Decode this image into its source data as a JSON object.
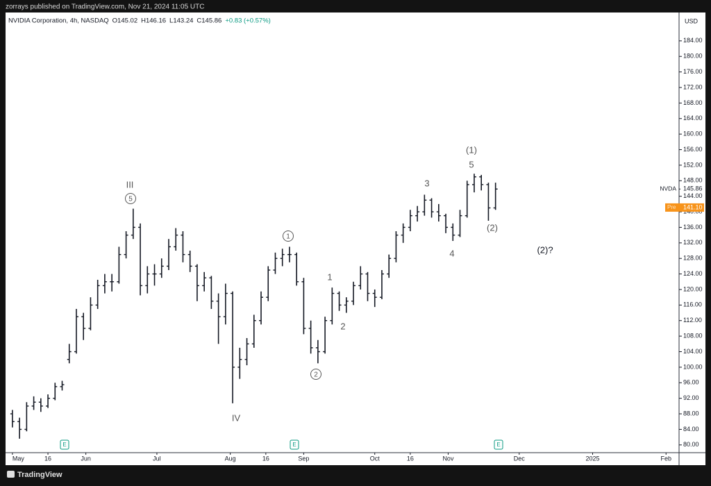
{
  "publisher": "zorrays published on TradingView.com, Nov 21, 2024 11:05 UTC",
  "footer": "TradingView",
  "chart_data": {
    "type": "ohlc",
    "legend": [
      "NVIDIA Corporation, 4h, NASDAQ",
      "O145.02",
      "H146.16",
      "L143.24",
      "C145.86",
      "+0.83 (+0.57%)"
    ],
    "currency": "USD",
    "color": "#131722",
    "x": [
      0,
      3,
      6,
      9,
      12,
      15,
      18,
      21,
      24,
      27,
      30,
      33,
      36,
      39,
      42,
      45,
      48,
      51,
      54,
      57,
      60,
      63,
      66,
      69,
      72,
      75,
      78,
      81,
      84,
      87,
      90,
      93,
      96,
      99,
      102,
      105,
      108,
      111,
      114,
      117,
      120,
      123,
      126,
      129,
      132,
      135,
      138,
      141,
      144,
      147,
      150,
      153,
      156,
      159,
      162,
      165,
      168,
      171,
      174,
      177,
      180,
      183,
      186,
      189,
      192,
      195,
      198,
      201,
      204
    ],
    "open": [
      88,
      86,
      84,
      90,
      91,
      90,
      92,
      95,
      102,
      104,
      113,
      110,
      116,
      121,
      122,
      122,
      129,
      134,
      136,
      121,
      124,
      124,
      126,
      131,
      134,
      129,
      126,
      121,
      123,
      117,
      113,
      119,
      100,
      102,
      106,
      112,
      118,
      125,
      128,
      129,
      129,
      122,
      110,
      105,
      104,
      112,
      119,
      116,
      117,
      121,
      124,
      119,
      118,
      124,
      128,
      134,
      136,
      139,
      140,
      143,
      140,
      139,
      136,
      134,
      139,
      147,
      149,
      147,
      141
    ],
    "high": [
      89,
      87,
      91,
      92.5,
      92,
      93,
      96,
      96.5,
      106,
      115,
      114,
      118,
      122.5,
      124,
      124,
      131,
      135,
      140.8,
      137,
      126,
      126.5,
      128,
      133,
      135.8,
      135,
      130,
      126.5,
      124.5,
      123.5,
      119,
      121.5,
      119.5,
      105,
      107.5,
      113.5,
      119.5,
      126,
      129.5,
      130.5,
      131,
      129.5,
      123,
      112,
      107,
      113,
      120.5,
      119.5,
      118,
      122,
      126,
      124.5,
      120,
      125,
      129,
      135,
      137,
      140.5,
      141.5,
      144.4,
      143.5,
      142,
      139.5,
      137,
      140.5,
      148,
      149.8,
      149.5,
      147.5,
      147.5
    ],
    "low": [
      84.5,
      81.6,
      83.5,
      89,
      88.5,
      89.5,
      91.5,
      94,
      101,
      103.5,
      107,
      109.5,
      115,
      119,
      119.5,
      121.5,
      128,
      133,
      118.5,
      119,
      121,
      123,
      125,
      130,
      127,
      124.5,
      117,
      119.5,
      115,
      106,
      111,
      90.7,
      97,
      100.5,
      105,
      111,
      117,
      124,
      126,
      127,
      121,
      108.5,
      103.5,
      101,
      103.5,
      111,
      114.5,
      114,
      116,
      120,
      117,
      115.5,
      117.5,
      123,
      127,
      132,
      135,
      137.5,
      139,
      138.5,
      137.5,
      134.5,
      132.5,
      133.5,
      138.5,
      145,
      145.5,
      137.7,
      140.5
    ],
    "close": [
      86,
      84,
      90,
      91,
      90,
      92,
      95,
      95.5,
      104,
      113,
      110,
      116,
      121,
      122,
      122,
      129,
      134,
      136,
      121,
      124,
      124,
      126,
      131,
      134,
      129,
      126,
      121,
      123,
      117,
      113,
      119,
      100,
      102,
      106,
      112,
      118,
      125,
      128,
      129,
      129,
      122,
      110,
      105,
      104,
      112,
      119,
      116,
      117,
      121,
      124,
      119,
      118,
      124,
      128,
      134,
      136,
      139,
      140,
      143,
      140,
      139,
      136,
      134,
      139,
      147,
      149,
      147,
      141,
      145.86
    ],
    "xlim": [
      -2.9,
      281.5
    ],
    "xticks": [
      {
        "value": 0,
        "label": "May"
      },
      {
        "value": 15,
        "label": "16"
      },
      {
        "value": 31,
        "label": "Jun"
      },
      {
        "value": 61,
        "label": "Jul"
      },
      {
        "value": 92,
        "label": "Aug"
      },
      {
        "value": 107,
        "label": "16"
      },
      {
        "value": 123,
        "label": "Sep"
      },
      {
        "value": 153,
        "label": "Oct"
      },
      {
        "value": 168,
        "label": "16"
      },
      {
        "value": 184,
        "label": "Nov"
      },
      {
        "value": 214,
        "label": "Dec"
      },
      {
        "value": 245,
        "label": "2025"
      },
      {
        "value": 276,
        "label": "Feb"
      }
    ],
    "ylim": [
      78.0,
      191.3
    ],
    "yticks": [
      {
        "value": 80,
        "label": "80.00"
      },
      {
        "value": 84,
        "label": "84.00"
      },
      {
        "value": 88,
        "label": "88.00"
      },
      {
        "value": 92,
        "label": "92.00"
      },
      {
        "value": 96,
        "label": "96.00"
      },
      {
        "value": 100,
        "label": "100.00"
      },
      {
        "value": 104,
        "label": "104.00"
      },
      {
        "value": 108,
        "label": "108.00"
      },
      {
        "value": 112,
        "label": "112.00"
      },
      {
        "value": 116,
        "label": "116.00"
      },
      {
        "value": 120,
        "label": "120.00"
      },
      {
        "value": 124,
        "label": "124.00"
      },
      {
        "value": 128,
        "label": "128.00"
      },
      {
        "value": 132,
        "label": "132.00"
      },
      {
        "value": 136,
        "label": "136.00"
      },
      {
        "value": 140,
        "label": "140.00"
      },
      {
        "value": 144,
        "label": "144.00"
      },
      {
        "value": 148,
        "label": "148.00"
      },
      {
        "value": 152,
        "label": "152.00"
      },
      {
        "value": 156,
        "label": "156.00"
      },
      {
        "value": 160,
        "label": "160.00"
      },
      {
        "value": 164,
        "label": "164.00"
      },
      {
        "value": 168,
        "label": "168.00"
      },
      {
        "value": 172,
        "label": "172.00"
      },
      {
        "value": 176,
        "label": "176.00"
      },
      {
        "value": 180,
        "label": "180.00"
      },
      {
        "value": 184,
        "label": "184.00"
      }
    ],
    "last_price": {
      "name": "NVDA",
      "value": 145.86
    },
    "pre_market": {
      "name": "Pre",
      "price": {
        "value": 141.1,
        "label": "141.10"
      }
    },
    "annotations": [
      "III",
      "5",
      "IV",
      "1",
      "2",
      "1",
      "2",
      "3",
      "4",
      "(1)",
      "5",
      "(2)",
      "(2)?"
    ],
    "earnings_markers": [
      "E",
      "E",
      "E"
    ]
  }
}
